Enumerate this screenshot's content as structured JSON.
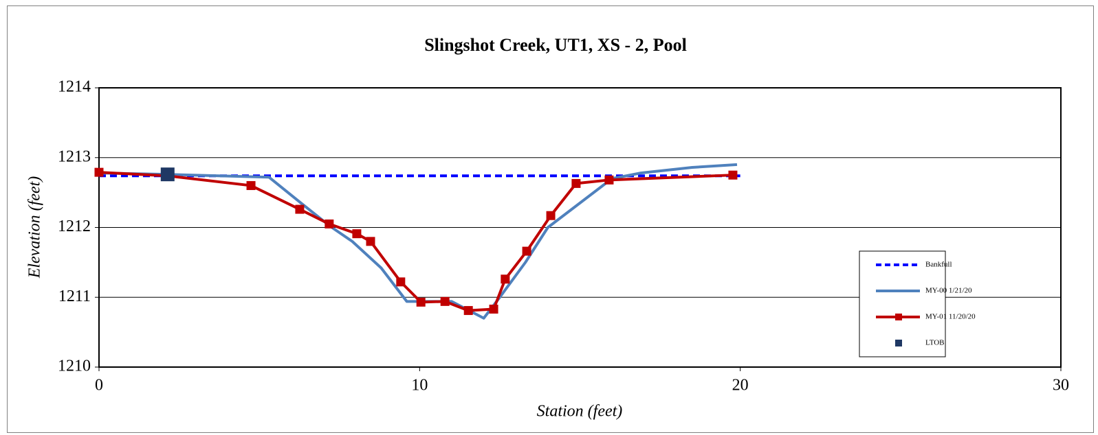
{
  "chart_data": {
    "type": "line",
    "title": "Slingshot Creek, UT1, XS - 2, Pool",
    "x_label": "Station (feet)",
    "y_label": "Elevation (feet)",
    "xlim": [
      0,
      30
    ],
    "xticks": [
      0,
      10,
      20,
      30
    ],
    "ylim": [
      1210,
      1214
    ],
    "yticks": [
      1210,
      1211,
      1212,
      1213,
      1214
    ],
    "grid": true,
    "legend": "lower right",
    "series": [
      {
        "name": "Bankfull",
        "color": "#0000ff",
        "style": "dashed",
        "x": [
          0,
          20
        ],
        "values": [
          1212.74,
          1212.74
        ]
      },
      {
        "name": "MY-00 1/21/20",
        "color": "#4f81bd",
        "style": "solid",
        "x": [
          0,
          2.1,
          5.3,
          6.3,
          7.2,
          7.9,
          8.8,
          9.6,
          10.3,
          11.0,
          12.0,
          12.5,
          13.3,
          14.0,
          15.0,
          16.0,
          16.9,
          18.5,
          19.9
        ],
        "values": [
          1212.78,
          1212.76,
          1212.72,
          1212.35,
          1212.02,
          1211.8,
          1211.42,
          1210.94,
          1210.94,
          1210.94,
          1210.7,
          1211.0,
          1211.5,
          1212.0,
          1212.35,
          1212.7,
          1212.78,
          1212.86,
          1212.9
        ]
      },
      {
        "name": "MY-01 11/20/20",
        "color": "#c00000",
        "style": "solid",
        "marker": "square",
        "x": [
          0,
          2.12,
          4.74,
          6.26,
          7.18,
          8.04,
          8.47,
          9.41,
          10.04,
          10.79,
          11.52,
          12.31,
          12.67,
          13.34,
          14.09,
          14.88,
          15.91,
          19.77
        ],
        "values": [
          1212.79,
          1212.74,
          1212.6,
          1212.26,
          1212.05,
          1211.91,
          1211.8,
          1211.22,
          1210.93,
          1210.94,
          1210.81,
          1210.83,
          1211.26,
          1211.66,
          1212.17,
          1212.63,
          1212.68,
          1212.75
        ]
      },
      {
        "name": "LTOB",
        "color": "#1f3864",
        "style": "none",
        "marker": "square",
        "x": [
          2.14
        ],
        "values": [
          1212.76
        ]
      }
    ]
  }
}
